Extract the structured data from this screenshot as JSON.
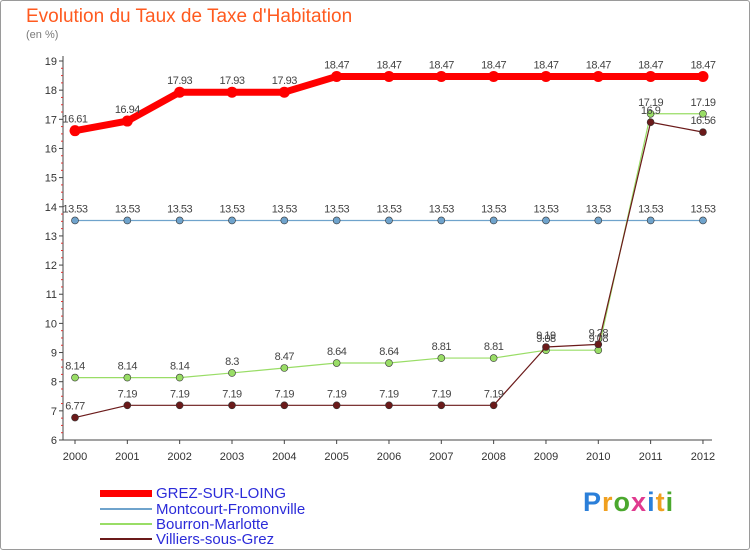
{
  "page": {
    "title": "Evolution du Taux de Taxe d'Habitation",
    "unit_label": "(en %)",
    "logo_text": "Proxiti"
  },
  "chart_data": {
    "type": "line",
    "title": "Evolution du Taux de Taxe d'Habitation",
    "ylabel": "(en %)",
    "xlabel": "",
    "ylim": [
      6,
      19
    ],
    "yticks": [
      6,
      7,
      8,
      9,
      10,
      11,
      12,
      13,
      14,
      15,
      16,
      17,
      18,
      19
    ],
    "categories": [
      "2000",
      "2001",
      "2002",
      "2003",
      "2004",
      "2005",
      "2006",
      "2007",
      "2008",
      "2009",
      "2010",
      "2011",
      "2012"
    ],
    "grid": false,
    "legend_position": "bottom-left",
    "series": [
      {
        "name": "GREZ-SUR-LOING",
        "color": "#ff0000",
        "values": [
          16.61,
          16.94,
          17.93,
          17.93,
          17.93,
          18.47,
          18.47,
          18.47,
          18.47,
          18.47,
          18.47,
          18.47,
          18.47
        ],
        "labels": [
          "16.61",
          "16.94",
          "17.93",
          "17.93",
          "17.93",
          "18.47",
          "18.47",
          "18.47",
          "18.47",
          "18.47",
          "18.47",
          "18.47",
          "18.47"
        ]
      },
      {
        "name": "Montcourt-Fromonville",
        "color": "#6fa3cc",
        "values": [
          13.53,
          13.53,
          13.53,
          13.53,
          13.53,
          13.53,
          13.53,
          13.53,
          13.53,
          13.53,
          13.53,
          13.53,
          13.53
        ],
        "labels": [
          "13.53",
          "13.53",
          "13.53",
          "13.53",
          "13.53",
          "13.53",
          "13.53",
          "13.53",
          "13.53",
          "13.53",
          "13.53",
          "13.53",
          "13.53"
        ]
      },
      {
        "name": "Bourron-Marlotte",
        "color": "#99dd66",
        "values": [
          8.14,
          8.14,
          8.14,
          8.3,
          8.47,
          8.64,
          8.64,
          8.81,
          8.81,
          9.08,
          9.08,
          17.19,
          17.19
        ],
        "labels": [
          "8.14",
          "8.14",
          "8.14",
          "8.3",
          "8.47",
          "8.64",
          "8.64",
          "8.81",
          "8.81",
          "9.08",
          "9.08",
          "17.19",
          "17.19"
        ]
      },
      {
        "name": "Villiers-sous-Grez",
        "color": "#6b1a1a",
        "values": [
          6.77,
          7.19,
          7.19,
          7.19,
          7.19,
          7.19,
          7.19,
          7.19,
          7.19,
          9.19,
          9.28,
          16.9,
          16.56
        ],
        "labels": [
          "6.77",
          "7.19",
          "7.19",
          "7.19",
          "7.19",
          "7.19",
          "7.19",
          "7.19",
          "7.19",
          "9.19",
          "9.28",
          "16.9",
          "16.56"
        ]
      }
    ]
  }
}
